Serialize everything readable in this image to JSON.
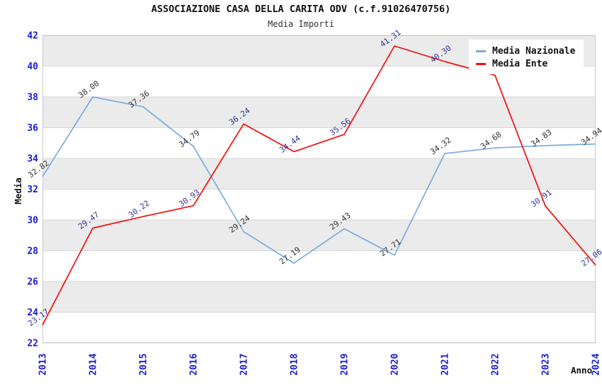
{
  "header": {
    "title": "ASSOCIAZIONE CASA DELLA CARITA ODV (c.f.91026470756)",
    "subtitle": "Media Importi"
  },
  "axes": {
    "x_title": "Anno",
    "y_title": "Media",
    "y_ticks": [
      "22",
      "24",
      "26",
      "28",
      "30",
      "32",
      "34",
      "36",
      "38",
      "40",
      "42"
    ],
    "x_ticks": [
      "2013",
      "2014",
      "2015",
      "2016",
      "2017",
      "2018",
      "2019",
      "2020",
      "2021",
      "2022",
      "2023",
      "2024"
    ]
  },
  "legend": {
    "entries": [
      {
        "label": "Media Nazionale",
        "color": "#7aacdf"
      },
      {
        "label": "Media Ente",
        "color": "#f40d0d"
      }
    ]
  },
  "colors": {
    "tick_label": "#1b1bd0",
    "band_gray": "#ebebeb",
    "band_white": "#ffffff",
    "grid_line": "#d7d7d7",
    "plot_border": "#c9c9c9",
    "nazionale_line": "#7aacdf",
    "ente_line": "#f40d0d",
    "nazionale_label": "#333333",
    "ente_label": "#333399"
  },
  "chart_data": {
    "type": "line",
    "title": "ASSOCIAZIONE CASA DELLA CARITA ODV (c.f.91026470756)",
    "subtitle": "Media Importi",
    "xlabel": "Anno",
    "ylabel": "Media",
    "x": [
      "2013",
      "2014",
      "2015",
      "2016",
      "2017",
      "2018",
      "2019",
      "2020",
      "2021",
      "2022",
      "2023",
      "2024"
    ],
    "series": [
      {
        "name": "Media Nazionale",
        "color": "#7aacdf",
        "label_color": "#333333",
        "values": [
          32.82,
          38.0,
          37.36,
          34.79,
          29.24,
          27.19,
          29.43,
          27.71,
          34.32,
          34.68,
          34.83,
          34.94
        ]
      },
      {
        "name": "Media Ente",
        "color": "#f40d0d",
        "label_color": "#333399",
        "values": [
          23.17,
          29.47,
          30.22,
          30.93,
          36.24,
          34.44,
          35.56,
          41.31,
          40.3,
          39.4,
          30.91,
          27.06
        ],
        "hidden_label_indices": [
          9
        ]
      }
    ],
    "ylim": [
      22,
      42
    ],
    "ytick_step": 2,
    "grid": "horizontal-bands-alternating",
    "legend_position": "top-right-inside",
    "point_labels": "rotated-45deg-above-left"
  }
}
